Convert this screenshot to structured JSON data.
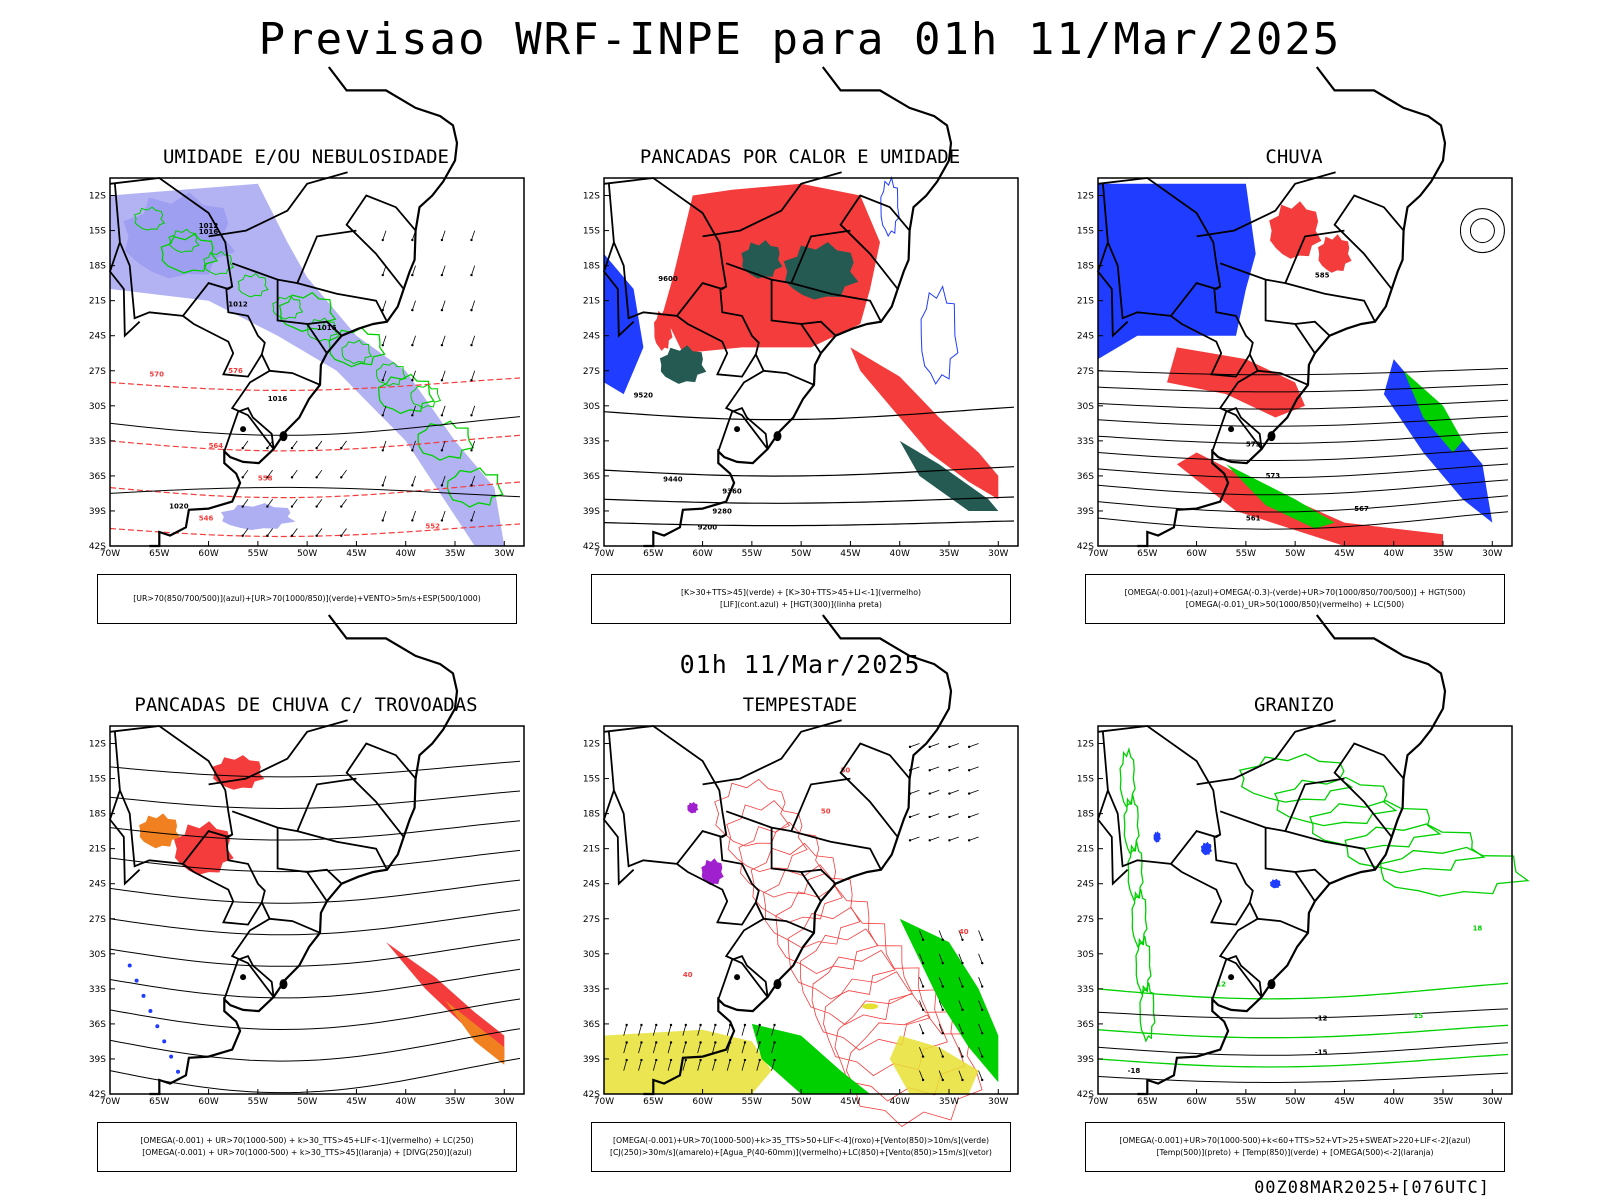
{
  "header": {
    "title": "Previsao WRF-INPE  para 01h 11/Mar/2025"
  },
  "middle": {
    "title": "01h 11/Mar/2025"
  },
  "footer": {
    "run": "00Z08MAR2025+[076UTC]"
  },
  "axes": {
    "lat_labels": [
      "12S",
      "15S",
      "18S",
      "21S",
      "24S",
      "27S",
      "30S",
      "33S",
      "36S",
      "39S",
      "42S"
    ],
    "lon_labels": [
      "70W",
      "65W",
      "60W",
      "55W",
      "50W",
      "45W",
      "40W",
      "35W",
      "30W"
    ]
  },
  "colors": {
    "blue": "#1f3cff",
    "lightblue": "#9a9af0",
    "green": "#00d000",
    "red": "#f43c3c",
    "darkgreen": "#245a52",
    "orange": "#f08020",
    "yellow": "#e6e032",
    "purple": "#a020d0"
  },
  "panels": [
    {
      "title": "UMIDADE E/OU NEBULOSIDADE",
      "legend": [
        "[UR>70(850/700/500)](azul)+[UR>70(1000/850)](verde)+VENTO>5m/s+ESP(500/1000)"
      ],
      "contour_labels": [
        "1016",
        "1012",
        "1016",
        "1012",
        "1016",
        "1020",
        "576",
        "570",
        "564",
        "558",
        "552",
        "546"
      ]
    },
    {
      "title": "PANCADAS POR CALOR E UMIDADE",
      "legend": [
        "[K>30+TTS>45](verde) + [K>30+TTS>45+LI<-1](vermelho)",
        "[LIF](cont.azul) + [HGT(300)](linha preta)"
      ],
      "contour_labels": [
        "9600",
        "9520",
        "9440",
        "9360",
        "9280",
        "9200"
      ]
    },
    {
      "title": "CHUVA",
      "legend": [
        "[OMEGA(-0.001)-(azul)+OMEGA(-0.3)-(verde)+UR>70(1000/850/700/500)] + HGT(500)",
        "[OMEGA(-0.01)_UR>50(1000/850)(vermelho) + LC(500)"
      ],
      "contour_labels": [
        "585",
        "579",
        "573",
        "567",
        "561"
      ]
    },
    {
      "title": "PANCADAS DE CHUVA C/ TROVOADAS",
      "legend": [
        "[OMEGA(-0.001) + UR>70(1000-500) + k>30_TTS>45+LIF<-1](vermelho) + LC(250)",
        "[OMEGA(-0.001) + UR>70(1000-500) + k>30_TTS>45](laranja) + [DIVG(250)](azul)"
      ],
      "contour_labels": []
    },
    {
      "title": "TEMPESTADE",
      "legend": [
        "[OMEGA(-0.001)+UR>70(1000-500)+k>35_TTS>50+LIF<-4](roxo)+[Vento(850)>10m/s](verde)",
        "[CJ(250)>30m/s](amarelo)+[Agua_P(40-60mm)](vermelho)+LC(850)+[Vento(850)>15m/s](vetor)"
      ],
      "contour_labels": [
        "50",
        "40",
        "40",
        "50"
      ]
    },
    {
      "title": "GRANIZO",
      "legend": [
        "[OMEGA(-0.001)+UR>70(1000-500)+k<60+TTS>52+VT>25+SWEAT>220+LIF<-2](azul)",
        "[Temp(500)](preto) + [Temp(850)](verde) + [OMEGA(500)<-2](laranja)"
      ],
      "contour_labels": [
        "-12",
        "-15",
        "-18",
        "12",
        "15",
        "18"
      ]
    }
  ]
}
